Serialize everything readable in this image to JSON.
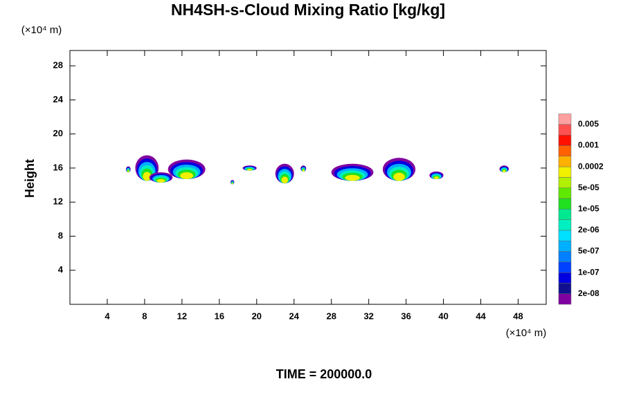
{
  "chart_data": {
    "type": "contour",
    "title": "NH4SH-s-Cloud Mixing Ratio [kg/kg]",
    "y_unit": "(×10⁴ m)",
    "x_unit": "(×10⁴ m)",
    "ylabel": "Height",
    "footer": "TIME = 200000.0",
    "xlim": [
      0,
      51
    ],
    "ylim": [
      0,
      29.8
    ],
    "xticks": [
      4,
      8,
      12,
      16,
      20,
      24,
      28,
      32,
      36,
      40,
      44,
      48
    ],
    "yticks": [
      4,
      8,
      12,
      16,
      20,
      24,
      28
    ],
    "colorbar": {
      "colors": [
        "#8000a0",
        "#101090",
        "#0000e0",
        "#0040ff",
        "#0080ff",
        "#00b0ff",
        "#00e0ff",
        "#00f0c0",
        "#00e890",
        "#20e020",
        "#60e800",
        "#b0f000",
        "#f0f000",
        "#ffb000",
        "#ff6000",
        "#ff1000",
        "#ff5050",
        "#ffa0a0"
      ],
      "levels": [
        {
          "value": 2e-08,
          "label": "2e-08"
        },
        {
          "value": 1e-07,
          "label": "1e-07"
        },
        {
          "value": 5e-07,
          "label": "5e-07"
        },
        {
          "value": 2e-06,
          "label": "2e-06"
        },
        {
          "value": 1e-05,
          "label": "1e-05"
        },
        {
          "value": 5e-05,
          "label": "5e-05"
        },
        0.0002,
        0.001,
        0.005
      ]
    },
    "clouds": [
      {
        "x": [
          7,
          9.5
        ],
        "y": [
          14.5,
          17.5
        ]
      },
      {
        "x": [
          8.5,
          11
        ],
        "y": [
          14.3,
          15.5
        ]
      },
      {
        "x": [
          10.5,
          14.5
        ],
        "y": [
          14.7,
          17
        ]
      },
      {
        "x": [
          6,
          6.5
        ],
        "y": [
          15.5,
          16.2
        ]
      },
      {
        "x": [
          17.2,
          17.6
        ],
        "y": [
          14.1,
          14.6
        ]
      },
      {
        "x": [
          18.5,
          20
        ],
        "y": [
          15.7,
          16.3
        ]
      },
      {
        "x": [
          22,
          24
        ],
        "y": [
          14.2,
          16.5
        ]
      },
      {
        "x": [
          24.7,
          25.3
        ],
        "y": [
          15.6,
          16.3
        ]
      },
      {
        "x": [
          28,
          32.5
        ],
        "y": [
          14.5,
          16.5
        ]
      },
      {
        "x": [
          33.5,
          37
        ],
        "y": [
          14.5,
          17.2
        ]
      },
      {
        "x": [
          38.5,
          40
        ],
        "y": [
          14.7,
          15.6
        ]
      },
      {
        "x": [
          46,
          47
        ],
        "y": [
          15.5,
          16.3
        ]
      }
    ]
  }
}
